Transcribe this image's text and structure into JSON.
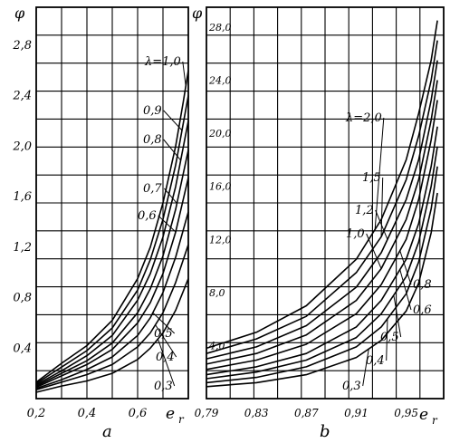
{
  "chart_data": [
    {
      "panel": "a",
      "type": "line",
      "ylabel": "φ",
      "xlabel": "e_r",
      "x_ticks": [
        "0,2",
        "0,4",
        "0,6"
      ],
      "y_ticks": [
        "0,4",
        "0,8",
        "1,2",
        "1,6",
        "2,0",
        "2,4",
        "2,8"
      ],
      "xlim": [
        0.2,
        0.8
      ],
      "ylim": [
        0.0,
        3.1
      ],
      "grid": true,
      "series": [
        {
          "name": "λ=1,0",
          "x": [
            0.2,
            0.3,
            0.4,
            0.5,
            0.6,
            0.65,
            0.7,
            0.75,
            0.78,
            0.8
          ],
          "y": [
            0.13,
            0.28,
            0.42,
            0.62,
            0.95,
            1.2,
            1.55,
            2.0,
            2.35,
            2.6
          ]
        },
        {
          "name": "0,9",
          "x": [
            0.2,
            0.3,
            0.4,
            0.5,
            0.6,
            0.65,
            0.7,
            0.75,
            0.8
          ],
          "y": [
            0.12,
            0.25,
            0.38,
            0.56,
            0.86,
            1.1,
            1.42,
            1.85,
            2.4
          ]
        },
        {
          "name": "0,8",
          "x": [
            0.2,
            0.3,
            0.4,
            0.5,
            0.6,
            0.65,
            0.7,
            0.75,
            0.8
          ],
          "y": [
            0.11,
            0.22,
            0.34,
            0.5,
            0.78,
            0.99,
            1.28,
            1.68,
            2.2
          ]
        },
        {
          "name": "0,7",
          "x": [
            0.2,
            0.3,
            0.4,
            0.5,
            0.6,
            0.65,
            0.7,
            0.75,
            0.8
          ],
          "y": [
            0.1,
            0.2,
            0.3,
            0.44,
            0.68,
            0.87,
            1.13,
            1.5,
            1.97
          ]
        },
        {
          "name": "0,6",
          "x": [
            0.2,
            0.3,
            0.4,
            0.5,
            0.6,
            0.65,
            0.7,
            0.75,
            0.8
          ],
          "y": [
            0.09,
            0.18,
            0.27,
            0.39,
            0.6,
            0.76,
            0.99,
            1.32,
            1.75
          ]
        },
        {
          "name": "0,5",
          "x": [
            0.2,
            0.3,
            0.4,
            0.5,
            0.6,
            0.65,
            0.7,
            0.75,
            0.8
          ],
          "y": [
            0.08,
            0.15,
            0.23,
            0.33,
            0.5,
            0.64,
            0.84,
            1.12,
            1.48
          ]
        },
        {
          "name": "0,4",
          "x": [
            0.2,
            0.3,
            0.4,
            0.5,
            0.6,
            0.65,
            0.7,
            0.75,
            0.8
          ],
          "y": [
            0.07,
            0.13,
            0.19,
            0.27,
            0.41,
            0.52,
            0.68,
            0.92,
            1.22
          ]
        },
        {
          "name": "0,3",
          "x": [
            0.2,
            0.3,
            0.4,
            0.5,
            0.6,
            0.65,
            0.7,
            0.75,
            0.8
          ],
          "y": [
            0.05,
            0.1,
            0.14,
            0.2,
            0.31,
            0.4,
            0.52,
            0.7,
            0.95
          ]
        }
      ]
    },
    {
      "panel": "b",
      "type": "line",
      "ylabel": "φ",
      "xlabel": "e_r",
      "x_ticks": [
        "0,79",
        "0,83",
        "0,87",
        "0,91",
        "0,95"
      ],
      "y_ticks": [
        "4,0",
        "8,0",
        "12,0",
        "16,0",
        "20,0",
        "24,0",
        "28,0"
      ],
      "xlim": [
        0.79,
        0.98
      ],
      "ylim": [
        0.0,
        29.5
      ],
      "grid": true,
      "series": [
        {
          "name": "λ=2,0",
          "x": [
            0.79,
            0.83,
            0.87,
            0.91,
            0.93,
            0.95,
            0.96,
            0.97,
            0.975
          ],
          "y": [
            3.8,
            5.0,
            7.0,
            10.5,
            13.5,
            18.0,
            21.5,
            25.5,
            28.5
          ]
        },
        {
          "name": "1,5",
          "x": [
            0.79,
            0.83,
            0.87,
            0.91,
            0.93,
            0.95,
            0.96,
            0.97,
            0.975
          ],
          "y": [
            3.4,
            4.5,
            6.2,
            9.5,
            12.2,
            16.5,
            19.8,
            24.0,
            27.0
          ]
        },
        {
          "name": "1,2",
          "x": [
            0.79,
            0.83,
            0.87,
            0.91,
            0.93,
            0.95,
            0.96,
            0.97,
            0.975
          ],
          "y": [
            3.0,
            3.9,
            5.5,
            8.4,
            11.0,
            15.0,
            18.0,
            22.5,
            25.5
          ]
        },
        {
          "name": "1,0",
          "x": [
            0.79,
            0.83,
            0.87,
            0.91,
            0.93,
            0.95,
            0.96,
            0.97,
            0.975
          ],
          "y": [
            2.6,
            3.4,
            4.8,
            7.4,
            9.8,
            13.5,
            16.5,
            21.0,
            24.0
          ]
        },
        {
          "name": "0,8",
          "x": [
            0.79,
            0.83,
            0.87,
            0.91,
            0.93,
            0.95,
            0.96,
            0.97,
            0.975
          ],
          "y": [
            2.2,
            2.9,
            4.1,
            6.4,
            8.6,
            12.0,
            15.0,
            19.5,
            22.5
          ]
        },
        {
          "name": "0,6",
          "x": [
            0.79,
            0.83,
            0.87,
            0.91,
            0.93,
            0.95,
            0.96,
            0.97,
            0.975
          ],
          "y": [
            1.8,
            2.4,
            3.4,
            5.4,
            7.4,
            10.5,
            13.2,
            17.5,
            20.5
          ]
        },
        {
          "name": "0,5",
          "x": [
            0.79,
            0.83,
            0.87,
            0.91,
            0.93,
            0.95,
            0.96,
            0.97,
            0.975
          ],
          "y": [
            1.5,
            2.0,
            2.9,
            4.6,
            6.4,
            9.2,
            11.8,
            16.0,
            19.0
          ]
        },
        {
          "name": "0,4",
          "x": [
            0.79,
            0.83,
            0.87,
            0.91,
            0.93,
            0.95,
            0.96,
            0.97,
            0.975
          ],
          "y": [
            1.2,
            1.6,
            2.4,
            3.9,
            5.4,
            7.9,
            10.3,
            14.3,
            17.5
          ]
        },
        {
          "name": "0,3",
          "x": [
            0.79,
            0.83,
            0.87,
            0.91,
            0.93,
            0.95,
            0.96,
            0.97,
            0.975
          ],
          "y": [
            0.9,
            1.2,
            1.8,
            3.1,
            4.4,
            6.6,
            8.7,
            12.5,
            15.5
          ]
        }
      ]
    }
  ],
  "panel_labels": {
    "a": "a",
    "b": "b"
  },
  "axis_symbols": {
    "phi": "φ",
    "e": "e",
    "r": "r"
  }
}
